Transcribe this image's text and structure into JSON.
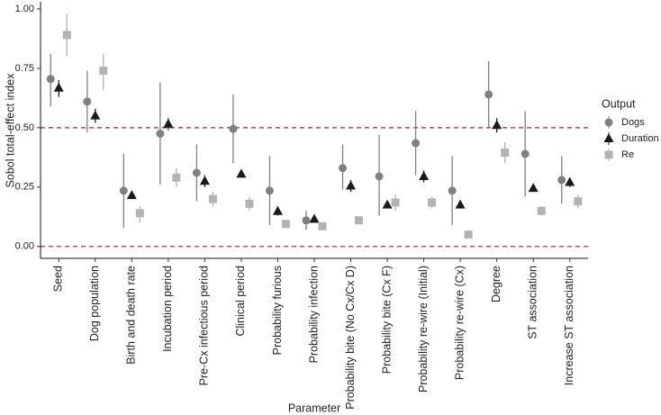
{
  "chart_data": {
    "type": "dot-errorbar",
    "y_label": "Sobol total-effect index",
    "x_label": "Parameter",
    "legend_title": "Output",
    "categories": [
      "Seed",
      "Dog population",
      "Birth and death rate",
      "Incubation period",
      "Pre-Cx infectious period",
      "Clinical period",
      "Probability furious",
      "Probability infection",
      "Probability bite (No Cx/Cx D)",
      "Probability bite (Cx F)",
      "Probability re-wire (Initial)",
      "Probability re-wire (Cx)",
      "Degree",
      "ST association",
      "Increase ST association"
    ],
    "series": [
      {
        "name": "Dogs",
        "color": "#808080",
        "marker": "circle",
        "values": [
          0.705,
          0.61,
          0.235,
          0.475,
          0.31,
          0.495,
          0.235,
          0.11,
          0.33,
          0.295,
          0.435,
          0.235,
          0.64,
          0.39,
          0.28
        ],
        "lower": [
          0.59,
          0.48,
          0.08,
          0.26,
          0.19,
          0.35,
          0.09,
          0.07,
          0.24,
          0.13,
          0.3,
          0.09,
          0.5,
          0.21,
          0.18
        ],
        "upper": [
          0.81,
          0.74,
          0.39,
          0.69,
          0.43,
          0.64,
          0.38,
          0.15,
          0.43,
          0.47,
          0.57,
          0.38,
          0.78,
          0.57,
          0.38
        ]
      },
      {
        "name": "Duration",
        "color": "#1a1a1a",
        "marker": "triangle",
        "values": [
          0.667,
          0.55,
          0.215,
          0.515,
          0.275,
          0.305,
          0.148,
          0.115,
          0.255,
          0.175,
          0.295,
          0.175,
          0.51,
          0.245,
          0.27
        ],
        "lower": [
          0.63,
          0.52,
          0.2,
          0.49,
          0.25,
          0.29,
          0.13,
          0.1,
          0.23,
          0.16,
          0.27,
          0.16,
          0.48,
          0.23,
          0.25
        ],
        "upper": [
          0.7,
          0.58,
          0.23,
          0.54,
          0.3,
          0.32,
          0.17,
          0.13,
          0.28,
          0.19,
          0.32,
          0.19,
          0.54,
          0.26,
          0.29
        ]
      },
      {
        "name": "Re",
        "color": "#b3b3b3",
        "marker": "square",
        "values": [
          0.89,
          0.74,
          0.14,
          0.29,
          0.2,
          0.18,
          0.095,
          0.085,
          0.11,
          0.185,
          0.185,
          0.05,
          0.395,
          0.15,
          0.19
        ],
        "lower": [
          0.8,
          0.66,
          0.1,
          0.25,
          0.17,
          0.15,
          0.08,
          0.07,
          0.1,
          0.15,
          0.16,
          0.04,
          0.35,
          0.13,
          0.16
        ],
        "upper": [
          0.98,
          0.81,
          0.17,
          0.33,
          0.23,
          0.21,
          0.11,
          0.1,
          0.12,
          0.22,
          0.21,
          0.06,
          0.44,
          0.17,
          0.22
        ]
      }
    ],
    "ylim": [
      -0.05,
      1.03
    ],
    "yticks": [
      {
        "value": 0,
        "label": "0.00"
      },
      {
        "value": 0.25,
        "label": "0.25"
      },
      {
        "value": 0.5,
        "label": "0.50"
      },
      {
        "value": 0.75,
        "label": "0.75"
      },
      {
        "value": 1,
        "label": "1.00"
      }
    ],
    "reference_lines": [
      0,
      0.5
    ],
    "reference_color": "#b22222",
    "grid": false
  }
}
